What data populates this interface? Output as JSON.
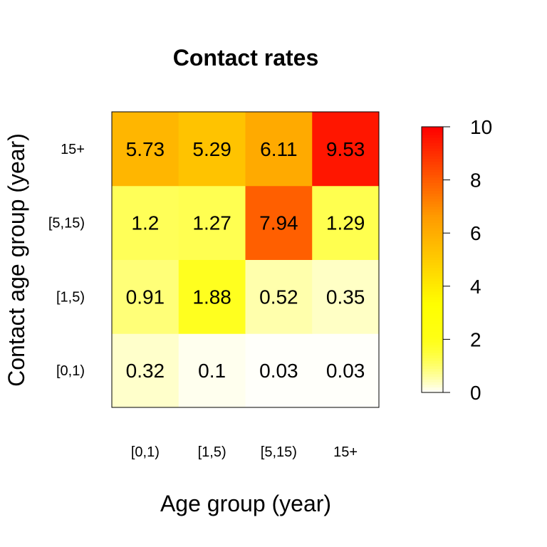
{
  "chart_data": {
    "type": "heatmap",
    "title": "Contact rates",
    "xlabel": "Age group (year)",
    "ylabel": "Contact age group (year)",
    "x_categories": [
      "[0,1)",
      "[1,5)",
      "[5,15)",
      "15+"
    ],
    "y_categories": [
      "[0,1)",
      "[1,5)",
      "[5,15)",
      "15+"
    ],
    "values": [
      [
        0.32,
        0.1,
        0.03,
        0.03
      ],
      [
        0.91,
        1.88,
        0.52,
        0.35
      ],
      [
        1.2,
        1.27,
        7.94,
        1.29
      ],
      [
        5.73,
        5.29,
        6.11,
        9.53
      ]
    ],
    "colorbar": {
      "range": [
        0,
        10
      ],
      "ticks": [
        0,
        2,
        4,
        6,
        8,
        10
      ],
      "colors": [
        "#ffffff",
        "#ffff00",
        "#ff9900",
        "#ff0000"
      ],
      "placement": "right"
    },
    "grid": false
  }
}
